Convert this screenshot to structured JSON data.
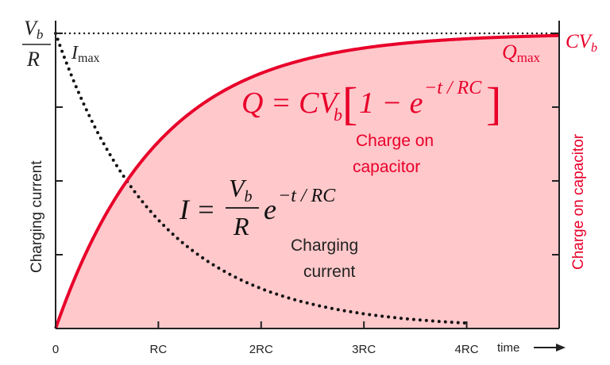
{
  "colors": {
    "charge_curve": "#e8002a",
    "charge_fill": "#ffc8cb",
    "current_curve": "#111111",
    "axis": "#222222",
    "text_dark": "#222222"
  },
  "labels": {
    "left_top_num": "V",
    "left_top_sub": "b",
    "left_top_den": "R",
    "imax_main": "I",
    "imax_sub": "max",
    "qmax_main": "Q",
    "qmax_sub": "max",
    "cvb_main": "CV",
    "cvb_sub": "b",
    "left_axis": "Charging current",
    "right_axis": "Charge on capacitor",
    "time_label": "time",
    "q_eq_lhs": "Q = CV",
    "q_eq_sub": "b",
    "q_eq_bracket_open": "[",
    "q_eq_inside": "1 − e",
    "q_eq_exp": "−t / RC",
    "q_eq_bracket_close": "]",
    "charge_caption_line1": "Charge on",
    "charge_caption_line2": "capacitor",
    "i_eq_lhs": "I =",
    "i_eq_num": "V",
    "i_eq_num_sub": "b",
    "i_eq_den": "R",
    "i_eq_e": "e",
    "i_eq_exp": "−t / RC",
    "current_caption_line1": "Charging",
    "current_caption_line2": "current"
  },
  "chart_data": {
    "type": "line",
    "x_tick_labels": [
      "0",
      "RC",
      "2RC",
      "3RC",
      "4RC"
    ],
    "x_tick_values": [
      0,
      1,
      2,
      3,
      4
    ],
    "x_range": [
      0,
      4.9
    ],
    "y_range": [
      0,
      1
    ],
    "series": [
      {
        "name": "Charge on capacitor",
        "function": "1 - exp(-t)",
        "style": "solid-filled",
        "x_range": [
          0,
          4.9
        ]
      },
      {
        "name": "Charging current",
        "function": "exp(-t)",
        "style": "dotted",
        "x_range": [
          0,
          4.0
        ]
      }
    ],
    "asymptote": {
      "value": 1,
      "style": "dotted"
    },
    "grid": false,
    "left_axis_ticks": 4,
    "right_axis_ticks": 4
  }
}
